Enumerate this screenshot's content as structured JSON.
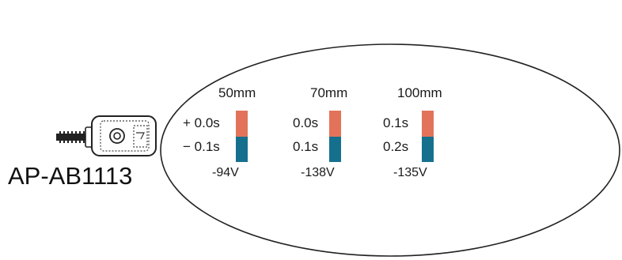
{
  "model_label": "AP-AB1113",
  "colors": {
    "upper_bar": "#e2735a",
    "lower_bar": "#15708e",
    "outline": "#222222"
  },
  "icon": "sensor-head-icon",
  "columns": [
    {
      "distance": "50mm",
      "upper_time": "+ 0.0s",
      "lower_time": "− 0.1s",
      "voltage": "-94V"
    },
    {
      "distance": "70mm",
      "upper_time": "0.0s",
      "lower_time": "0.1s",
      "voltage": "-138V"
    },
    {
      "distance": "100mm",
      "upper_time": "0.1s",
      "lower_time": "0.2s",
      "voltage": "-135V"
    }
  ]
}
